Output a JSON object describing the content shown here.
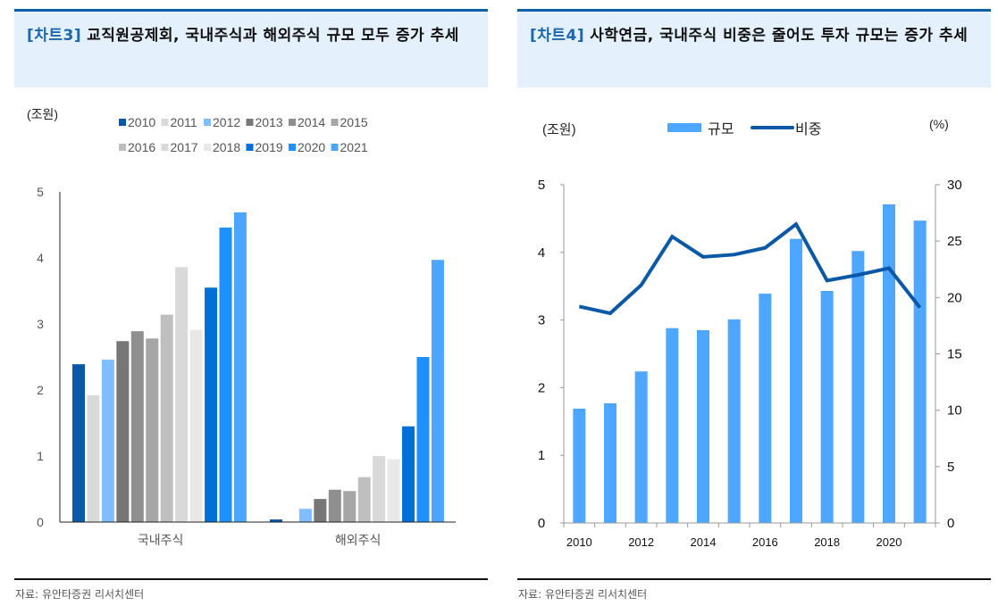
{
  "chart_data": [
    {
      "type": "bar",
      "tag": "[차트3]",
      "title": "교직원공제회, 국내주식과 해외주식 규모 모두 증가 추세",
      "ylabel": "(조원)",
      "ylim": [
        0,
        5
      ],
      "yticks": [
        0,
        1,
        2,
        3,
        4,
        5
      ],
      "categories": [
        "국내주식",
        "해외주식"
      ],
      "legend_position": "top",
      "series": [
        {
          "name": "2010",
          "color": "#0a58a8",
          "values": [
            2.39,
            0.04
          ]
        },
        {
          "name": "2011",
          "color": "#d9d9d9",
          "values": [
            1.92,
            0.01
          ]
        },
        {
          "name": "2012",
          "color": "#7fbfff",
          "values": [
            2.46,
            0.2
          ]
        },
        {
          "name": "2013",
          "color": "#777777",
          "values": [
            2.74,
            0.35
          ]
        },
        {
          "name": "2014",
          "color": "#8f8f8f",
          "values": [
            2.89,
            0.49
          ]
        },
        {
          "name": "2015",
          "color": "#a6a6a6",
          "values": [
            2.78,
            0.47
          ]
        },
        {
          "name": "2016",
          "color": "#bfbfbf",
          "values": [
            3.14,
            0.68
          ]
        },
        {
          "name": "2017",
          "color": "#d9d9d9",
          "values": [
            3.86,
            1.0
          ]
        },
        {
          "name": "2018",
          "color": "#e8e8e8",
          "values": [
            2.91,
            0.95
          ]
        },
        {
          "name": "2019",
          "color": "#0070d6",
          "values": [
            3.55,
            1.45
          ]
        },
        {
          "name": "2020",
          "color": "#1e90ff",
          "values": [
            4.46,
            2.5
          ]
        },
        {
          "name": "2021",
          "color": "#4ca6ff",
          "values": [
            4.69,
            3.97
          ]
        }
      ],
      "source": "자료: 유안타증권 리서치센터"
    },
    {
      "type": "bar+line",
      "tag": "[차트4]",
      "title": "사학연금, 국내주식 비중은 줄어도 투자 규모는 증가 추세",
      "ylabel_left": "(조원)",
      "ylabel_right": "(%)",
      "ylim_left": [
        0,
        5
      ],
      "ylim_right": [
        0,
        30
      ],
      "yticks_left": [
        0,
        1,
        2,
        3,
        4,
        5
      ],
      "yticks_right": [
        0,
        5,
        10,
        15,
        20,
        25,
        30
      ],
      "x": [
        2010,
        2011,
        2012,
        2013,
        2014,
        2015,
        2016,
        2017,
        2018,
        2019,
        2020,
        2021
      ],
      "xtick_labels": [
        "2010",
        "2012",
        "2014",
        "2016",
        "2018",
        "2020"
      ],
      "legend_position": "top",
      "series": [
        {
          "name": "규모",
          "type": "bar",
          "axis": "left",
          "color": "#4da6ff",
          "values": [
            1.69,
            1.77,
            2.24,
            2.88,
            2.85,
            3.01,
            3.39,
            4.2,
            3.43,
            4.02,
            4.71,
            4.47
          ]
        },
        {
          "name": "비중",
          "type": "line",
          "axis": "right",
          "color": "#0a58a8",
          "values": [
            19.2,
            18.6,
            21.1,
            25.4,
            23.6,
            23.8,
            24.4,
            26.5,
            21.5,
            22.0,
            22.6,
            19.1
          ]
        }
      ],
      "source": "자료: 유안타증권 리서치센터"
    }
  ]
}
